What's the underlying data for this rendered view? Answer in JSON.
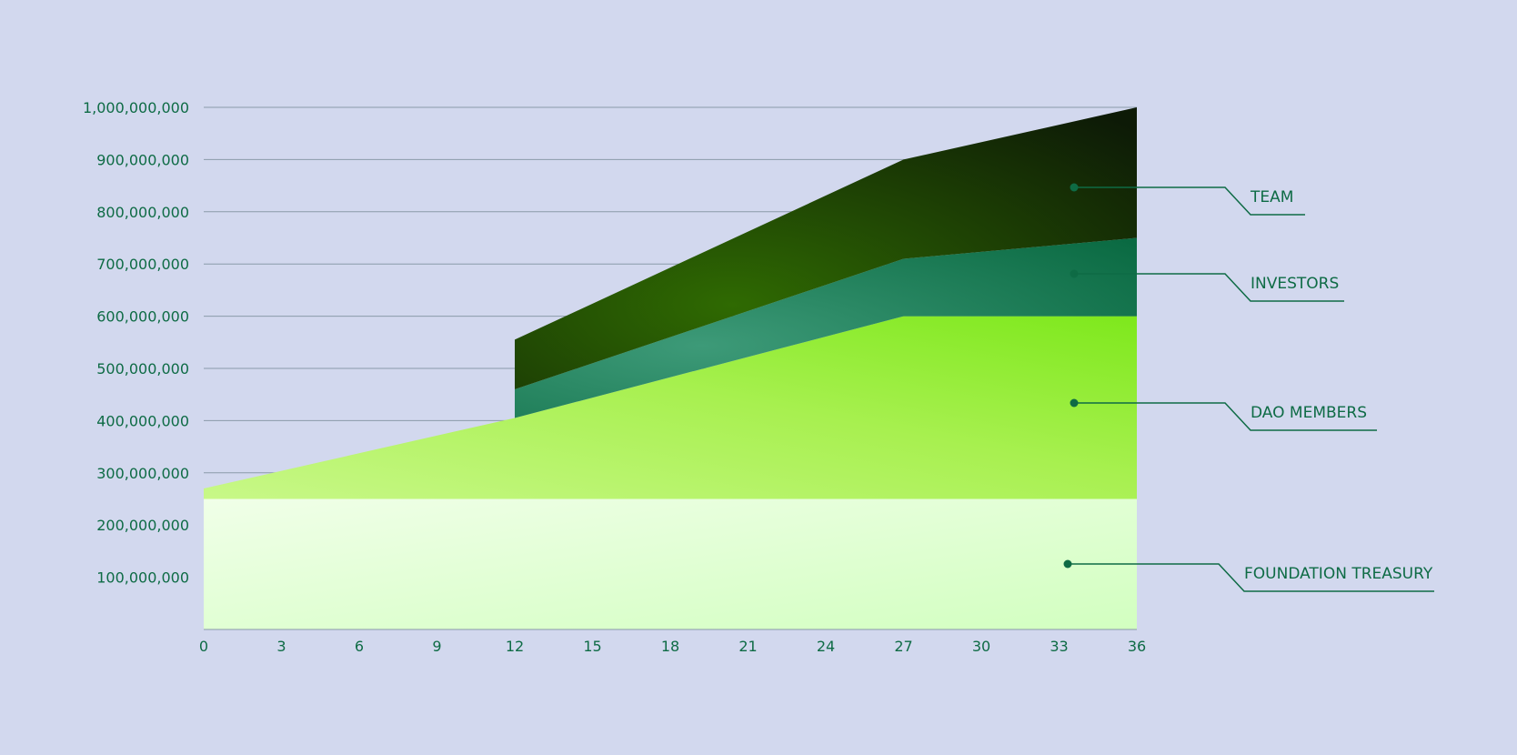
{
  "chart_data": {
    "type": "area",
    "title": "",
    "xlabel": "",
    "ylabel": "",
    "x_ticks": [
      0,
      3,
      6,
      9,
      12,
      15,
      18,
      21,
      24,
      27,
      30,
      33,
      36
    ],
    "y_ticks": [
      100000000,
      200000000,
      300000000,
      400000000,
      500000000,
      600000000,
      700000000,
      800000000,
      900000000,
      1000000000
    ],
    "y_tick_labels": [
      "100,000,000",
      "200,000,000",
      "300,000,000",
      "400,000,000",
      "500,000,000",
      "600,000,000",
      "700,000,000",
      "800,000,000",
      "900,000,000",
      "1,000,000,000"
    ],
    "x_tick_labels": [
      "0",
      "3",
      "6",
      "9",
      "12",
      "15",
      "18",
      "21",
      "24",
      "27",
      "30",
      "33",
      "36"
    ],
    "xlim": [
      0,
      36
    ],
    "ylim": [
      0,
      1000000000
    ],
    "grid": true,
    "legend_placement": "right",
    "stacked": true,
    "series": [
      {
        "name": "FOUNDATION TREASURY",
        "color": "#e6ffd8",
        "points": [
          [
            0,
            250000000
          ],
          [
            36,
            250000000
          ]
        ]
      },
      {
        "name": "DAO MEMBERS",
        "color": "#9ff04a",
        "points": [
          [
            0,
            20000000
          ],
          [
            12,
            155000000
          ],
          [
            27,
            350000000
          ],
          [
            36,
            350000000
          ]
        ]
      },
      {
        "name": "INVESTORS",
        "color": "#1f8a5e",
        "start": 12,
        "points": [
          [
            12,
            55000000
          ],
          [
            27,
            110000000
          ],
          [
            36,
            150000000
          ]
        ]
      },
      {
        "name": "TEAM",
        "color": "#163d05",
        "start": 12,
        "points": [
          [
            12,
            95000000
          ],
          [
            27,
            190000000
          ],
          [
            36,
            250000000
          ]
        ]
      }
    ]
  }
}
